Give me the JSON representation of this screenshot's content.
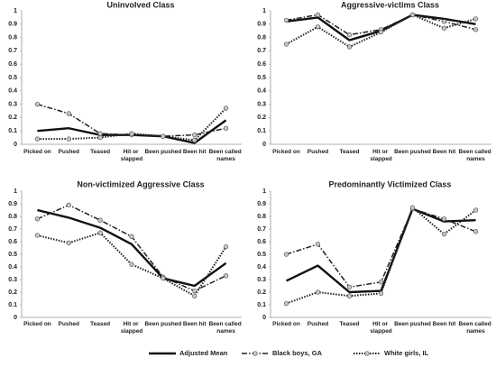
{
  "chart_data": [
    {
      "type": "line",
      "title": "Uninvolved Class",
      "categories": [
        "Picked on",
        "Pushed",
        "Teased",
        "Hit or slapped",
        "Been pushed",
        "Been hit",
        "Been called names"
      ],
      "series": [
        {
          "name": "Adjusted Mean",
          "color": "#111111",
          "line_style": "solid",
          "marker": "none",
          "values": [
            0.1,
            0.12,
            0.07,
            0.07,
            0.06,
            0.01,
            0.18
          ]
        },
        {
          "name": "Black boys, GA",
          "color": "#222222",
          "line_style": "dash-dot",
          "marker": "circle",
          "values": [
            0.3,
            0.23,
            0.08,
            0.07,
            0.06,
            0.07,
            0.12
          ]
        },
        {
          "name": "White girls, IL",
          "color": "#222222",
          "line_style": "dotted",
          "marker": "circle",
          "values": [
            0.04,
            0.04,
            0.05,
            0.08,
            0.06,
            0.03,
            0.27
          ]
        }
      ],
      "ylim": [
        0,
        1
      ],
      "yticks": [
        0,
        0.1,
        0.2,
        0.3,
        0.4,
        0.5,
        0.6,
        0.7,
        0.8,
        0.9,
        1
      ],
      "grid": false
    },
    {
      "type": "line",
      "title": "Aggressive-victims Class",
      "categories": [
        "Picked on",
        "Pushed",
        "Teased",
        "Hit or slapped",
        "Been pushed",
        "Been hit",
        "Been called names"
      ],
      "series": [
        {
          "name": "Adjusted Mean",
          "color": "#111111",
          "line_style": "solid",
          "marker": "none",
          "values": [
            0.92,
            0.95,
            0.78,
            0.85,
            0.97,
            0.94,
            0.9
          ]
        },
        {
          "name": "Black boys, GA",
          "color": "#222222",
          "line_style": "dash-dot",
          "marker": "circle",
          "values": [
            0.93,
            0.97,
            0.82,
            0.86,
            0.97,
            0.92,
            0.86
          ]
        },
        {
          "name": "White girls, IL",
          "color": "#222222",
          "line_style": "dotted",
          "marker": "circle",
          "values": [
            0.75,
            0.88,
            0.73,
            0.84,
            0.97,
            0.87,
            0.94
          ]
        }
      ],
      "ylim": [
        0,
        1
      ],
      "yticks": [
        0,
        0.1,
        0.2,
        0.3,
        0.4,
        0.5,
        0.6,
        0.7,
        0.8,
        0.9,
        1
      ],
      "grid": false
    },
    {
      "type": "line",
      "title": "Non-victimized Aggressive Class",
      "categories": [
        "Picked on",
        "Pushed",
        "Teased",
        "Hit or slapped",
        "Been pushed",
        "Been hit",
        "Been called names"
      ],
      "series": [
        {
          "name": "Adjusted Mean",
          "color": "#111111",
          "line_style": "solid",
          "marker": "none",
          "values": [
            0.85,
            0.79,
            0.71,
            0.58,
            0.31,
            0.25,
            0.43
          ]
        },
        {
          "name": "Black boys, GA",
          "color": "#222222",
          "line_style": "dash-dot",
          "marker": "circle",
          "values": [
            0.78,
            0.89,
            0.77,
            0.64,
            0.32,
            0.21,
            0.33
          ]
        },
        {
          "name": "White girls, IL",
          "color": "#222222",
          "line_style": "dotted",
          "marker": "circle",
          "values": [
            0.65,
            0.59,
            0.67,
            0.42,
            0.31,
            0.17,
            0.56
          ]
        }
      ],
      "ylim": [
        0,
        1
      ],
      "yticks": [
        0,
        0.1,
        0.2,
        0.3,
        0.4,
        0.5,
        0.6,
        0.7,
        0.8,
        0.9,
        1
      ],
      "grid": false
    },
    {
      "type": "line",
      "title": "Predominantly Victimized Class",
      "categories": [
        "Picked on",
        "Pushed",
        "Teased",
        "Hit or slapped",
        "Been pushed",
        "Been hit",
        "Been called names"
      ],
      "series": [
        {
          "name": "Adjusted Mean",
          "color": "#111111",
          "line_style": "solid",
          "marker": "none",
          "values": [
            0.29,
            0.41,
            0.2,
            0.21,
            0.86,
            0.76,
            0.77
          ]
        },
        {
          "name": "Black boys, GA",
          "color": "#222222",
          "line_style": "dash-dot",
          "marker": "circle",
          "values": [
            0.5,
            0.58,
            0.24,
            0.28,
            0.86,
            0.78,
            0.68
          ]
        },
        {
          "name": "White girls, IL",
          "color": "#222222",
          "line_style": "dotted",
          "marker": "circle",
          "values": [
            0.11,
            0.2,
            0.17,
            0.19,
            0.87,
            0.66,
            0.85
          ]
        }
      ],
      "ylim": [
        0,
        1
      ],
      "yticks": [
        0,
        0.1,
        0.2,
        0.3,
        0.4,
        0.5,
        0.6,
        0.7,
        0.8,
        0.9,
        1
      ],
      "grid": false
    }
  ]
}
